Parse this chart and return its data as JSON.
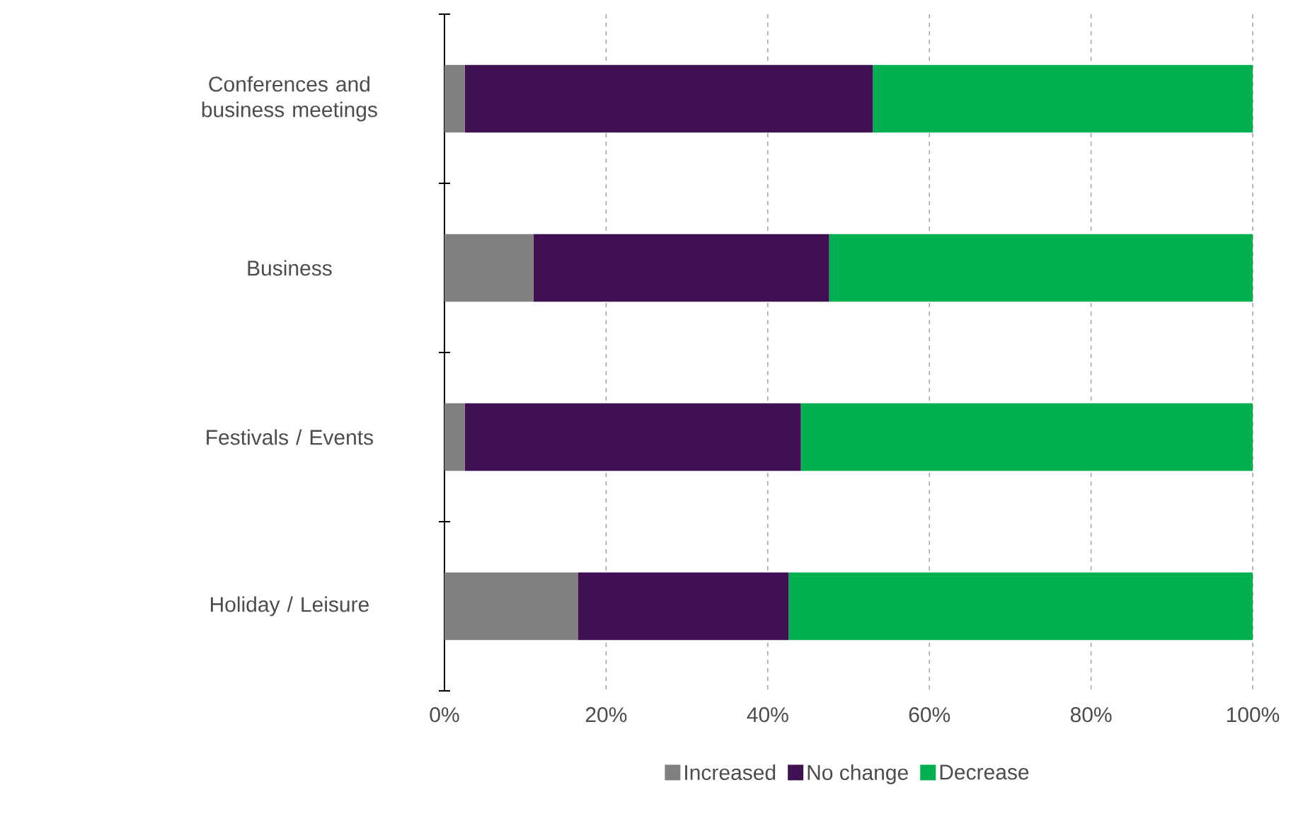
{
  "chart_data": {
    "type": "bar",
    "orientation": "horizontal",
    "stacked": true,
    "categories": [
      "Conferences and business meetings",
      "Business",
      "Festivals / Events",
      "Holiday / Leisure"
    ],
    "series": [
      {
        "name": "Increased",
        "color": "#808080",
        "values": [
          2.5,
          11,
          2.5,
          16.5
        ]
      },
      {
        "name": "No change",
        "color": "#3f1152",
        "values": [
          50.5,
          36.6,
          41.6,
          26.1
        ]
      },
      {
        "name": "Decrease",
        "color": "#00b050",
        "values": [
          47,
          52.4,
          55.9,
          57.4
        ]
      }
    ],
    "xlim": [
      0,
      100
    ],
    "xticks": [
      {
        "value": 0,
        "label": "0%"
      },
      {
        "value": 20,
        "label": "20%"
      },
      {
        "value": 40,
        "label": "40%"
      },
      {
        "value": 60,
        "label": "60%"
      },
      {
        "value": 80,
        "label": "80%"
      },
      {
        "value": 100,
        "label": "100%"
      }
    ],
    "grid": "x",
    "legend": "bottom"
  }
}
